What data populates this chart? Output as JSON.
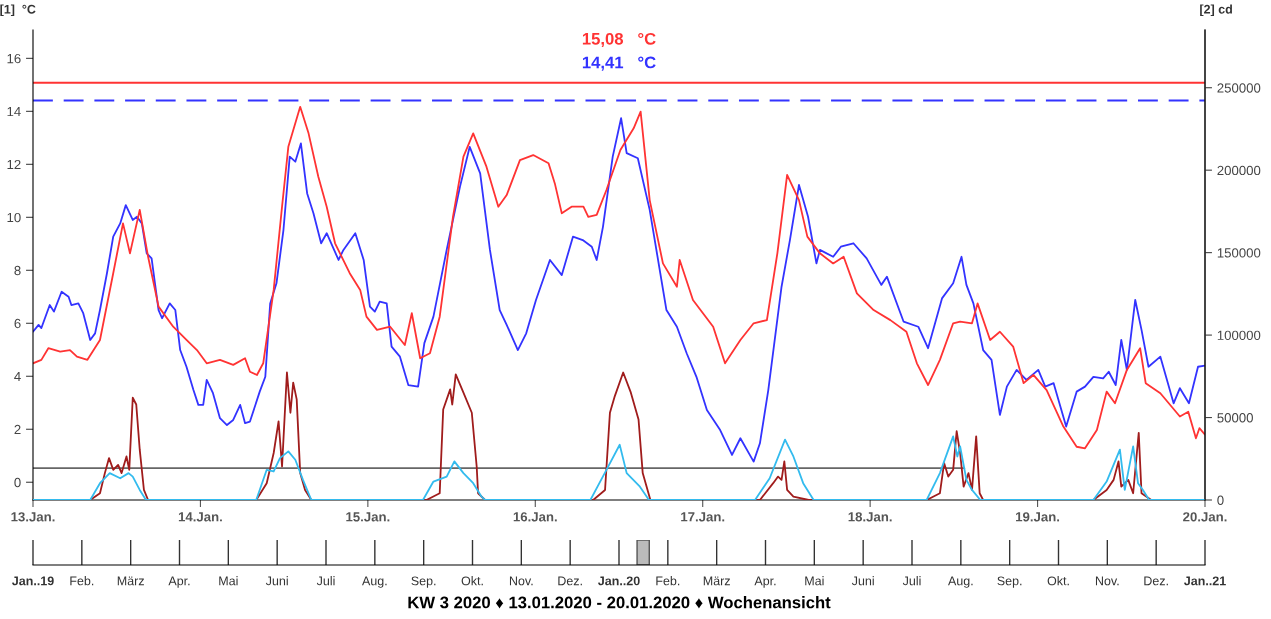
{
  "chart_data": [
    {
      "type": "line",
      "ylabel": "[1]  °C",
      "y2label": "[2] cd",
      "xlim": [
        "2020-01-13",
        "2020-01-20"
      ],
      "xticks": [
        {
          "value": "2020-01-13",
          "label": "13.Jan."
        },
        {
          "value": "2020-01-14",
          "label": "14.Jan."
        },
        {
          "value": "2020-01-15",
          "label": "15.Jan."
        },
        {
          "value": "2020-01-16",
          "label": "16.Jan."
        },
        {
          "value": "2020-01-17",
          "label": "17.Jan."
        },
        {
          "value": "2020-01-18",
          "label": "18.Jan."
        },
        {
          "value": "2020-01-19",
          "label": "19.Jan."
        },
        {
          "value": "2020-01-20",
          "label": "20.Jan."
        }
      ],
      "ylim": [
        -0.67,
        17.07
      ],
      "yticks": [
        0,
        2,
        4,
        6,
        8,
        10,
        12,
        14,
        16
      ],
      "y2lim": [
        0,
        285000
      ],
      "y2ticks": [
        0,
        50000,
        100000,
        150000,
        200000,
        250000
      ],
      "ref_lines": [
        {
          "axis": "y",
          "value": 15.08,
          "label": "15,08   °C",
          "color": "#ff3333",
          "line_style": "solid"
        },
        {
          "axis": "y",
          "value": 14.41,
          "label": "14,41   °C",
          "color": "#3333ff",
          "line_style": "dashed"
        }
      ],
      "series": [
        {
          "color": "#3333ff",
          "x": [
            "2020-01-13T00:00",
            "2020-01-13T00:48",
            "2020-01-13T01:12",
            "2020-01-13T02:24",
            "2020-01-13T03:00",
            "2020-01-13T04:06",
            "2020-01-13T05:06",
            "2020-01-13T05:30",
            "2020-01-13T06:30",
            "2020-01-13T07:12",
            "2020-01-13T08:12",
            "2020-01-13T08:54",
            "2020-01-13T09:36",
            "2020-01-13T10:36",
            "2020-01-13T11:30",
            "2020-01-13T12:30",
            "2020-01-13T13:18",
            "2020-01-13T14:18",
            "2020-01-13T14:54",
            "2020-01-13T15:36",
            "2020-01-13T16:18",
            "2020-01-13T17:00",
            "2020-01-13T18:00",
            "2020-01-13T18:30",
            "2020-01-13T19:36",
            "2020-01-13T20:24",
            "2020-01-13T21:06",
            "2020-01-13T22:00",
            "2020-01-13T23:00",
            "2020-01-13T23:42",
            "2020-01-14T00:24",
            "2020-01-14T00:54",
            "2020-01-14T01:48",
            "2020-01-14T02:48",
            "2020-01-14T03:48",
            "2020-01-14T04:42",
            "2020-01-14T05:42",
            "2020-01-14T06:24",
            "2020-01-14T07:06",
            "2020-01-14T08:30",
            "2020-01-14T09:18",
            "2020-01-14T10:00",
            "2020-01-14T10:54",
            "2020-01-14T11:54",
            "2020-01-14T12:48",
            "2020-01-14T13:36",
            "2020-01-14T14:24",
            "2020-01-14T15:18",
            "2020-01-14T16:12",
            "2020-01-14T17:18",
            "2020-01-14T18:06",
            "2020-01-14T19:48",
            "2020-01-14T20:30",
            "2020-01-14T22:12",
            "2020-01-14T23:24",
            "2020-01-15T00:18",
            "2020-01-15T01:00",
            "2020-01-15T01:42",
            "2020-01-15T02:42",
            "2020-01-15T03:24",
            "2020-01-15T04:36",
            "2020-01-15T05:48",
            "2020-01-15T07:12",
            "2020-01-15T08:06",
            "2020-01-15T09:24",
            "2020-01-15T11:18",
            "2020-01-15T13:12",
            "2020-01-15T14:36",
            "2020-01-15T16:06",
            "2020-01-15T17:30",
            "2020-01-15T18:54",
            "2020-01-15T19:54",
            "2020-01-15T21:30",
            "2020-01-15T22:42",
            "2020-01-16T00:06",
            "2020-01-16T02:06",
            "2020-01-16T03:48",
            "2020-01-16T05:24",
            "2020-01-16T06:48",
            "2020-01-16T08:06",
            "2020-01-16T08:48",
            "2020-01-16T09:42",
            "2020-01-16T11:06",
            "2020-01-16T12:18",
            "2020-01-16T13:06",
            "2020-01-16T14:42",
            "2020-01-16T16:24",
            "2020-01-16T18:48",
            "2020-01-16T20:18",
            "2020-01-16T21:42",
            "2020-01-16T23:06",
            "2020-01-17T00:36",
            "2020-01-17T02:30",
            "2020-01-17T04:12",
            "2020-01-17T05:24",
            "2020-01-17T07:18",
            "2020-01-17T08:12",
            "2020-01-17T09:24",
            "2020-01-17T11:18",
            "2020-01-17T12:30",
            "2020-01-17T13:48",
            "2020-01-17T15:06",
            "2020-01-17T16:18",
            "2020-01-17T16:48",
            "2020-01-17T18:42",
            "2020-01-17T19:48",
            "2020-01-17T21:36",
            "2020-01-17T23:30",
            "2020-01-18T01:36",
            "2020-01-18T02:24",
            "2020-01-18T04:48",
            "2020-01-18T06:54",
            "2020-01-18T08:18",
            "2020-01-18T10:18",
            "2020-01-18T11:54",
            "2020-01-18T13:06",
            "2020-01-18T13:48",
            "2020-01-18T14:48",
            "2020-01-18T16:12",
            "2020-01-18T17:24",
            "2020-01-18T18:36",
            "2020-01-18T19:36",
            "2020-01-18T21:00",
            "2020-01-18T22:24",
            "2020-01-19T00:06",
            "2020-01-19T01:06",
            "2020-01-19T02:18",
            "2020-01-19T04:06",
            "2020-01-19T05:36",
            "2020-01-19T06:48",
            "2020-01-19T08:00",
            "2020-01-19T09:24",
            "2020-01-19T10:12",
            "2020-01-19T11:12",
            "2020-01-19T12:00",
            "2020-01-19T12:48",
            "2020-01-19T14:00",
            "2020-01-19T14:54",
            "2020-01-19T15:54",
            "2020-01-19T17:36",
            "2020-01-19T19:30",
            "2020-01-19T20:24",
            "2020-01-19T21:42",
            "2020-01-19T23:00",
            "2020-01-20T00:00"
          ],
          "values": [
            5.68,
            5.94,
            5.82,
            6.69,
            6.44,
            7.19,
            7.0,
            6.69,
            6.75,
            6.38,
            5.37,
            5.62,
            6.5,
            7.89,
            9.27,
            9.77,
            10.46,
            9.9,
            10.02,
            9.77,
            8.64,
            8.45,
            6.5,
            6.19,
            6.75,
            6.5,
            4.99,
            4.36,
            3.48,
            2.92,
            2.92,
            3.86,
            3.36,
            2.42,
            2.16,
            2.35,
            2.92,
            2.23,
            2.29,
            3.42,
            3.98,
            6.75,
            7.51,
            9.52,
            12.29,
            12.1,
            12.79,
            10.9,
            10.15,
            9.02,
            9.4,
            8.39,
            8.77,
            9.4,
            8.39,
            6.63,
            6.44,
            6.82,
            6.75,
            5.12,
            4.74,
            3.67,
            3.61,
            5.25,
            6.25,
            8.77,
            11.15,
            12.66,
            11.66,
            8.77,
            6.5,
            5.94,
            4.99,
            5.62,
            6.88,
            8.39,
            7.82,
            9.27,
            9.14,
            8.89,
            8.39,
            9.64,
            12.29,
            13.74,
            12.42,
            12.23,
            10.28,
            6.5,
            5.87,
            4.87,
            3.98,
            2.73,
            1.97,
            1.03,
            1.66,
            0.78,
            1.47,
            3.48,
            7.38,
            9.14,
            11.22,
            10.02,
            8.26,
            8.77,
            8.51,
            8.89,
            9.02,
            8.45,
            7.45,
            7.76,
            6.06,
            5.87,
            5.06,
            6.94,
            7.51,
            8.51,
            7.45,
            6.75,
            4.99,
            4.62,
            2.54,
            3.61,
            4.24,
            3.86,
            4.24,
            3.61,
            3.74,
            2.1,
            3.42,
            3.61,
            3.98,
            3.92,
            4.17,
            3.67,
            5.37,
            4.24,
            6.88,
            5.75,
            4.36,
            4.74,
            2.98,
            3.55,
            2.98,
            4.36,
            4.4
          ]
        },
        {
          "color": "#ff3333",
          "x": [
            "2020-01-13T00:00",
            "2020-01-13T01:12",
            "2020-01-13T02:12",
            "2020-01-13T03:54",
            "2020-01-13T05:18",
            "2020-01-13T06:18",
            "2020-01-13T07:48",
            "2020-01-13T09:36",
            "2020-01-13T11:30",
            "2020-01-13T12:54",
            "2020-01-13T13:54",
            "2020-01-13T15:18",
            "2020-01-13T16:30",
            "2020-01-13T18:00",
            "2020-01-13T20:06",
            "2020-01-13T22:00",
            "2020-01-13T23:30",
            "2020-01-14T00:54",
            "2020-01-14T02:48",
            "2020-01-14T04:42",
            "2020-01-14T06:24",
            "2020-01-14T07:06",
            "2020-01-14T08:06",
            "2020-01-14T09:00",
            "2020-01-14T10:30",
            "2020-01-14T11:42",
            "2020-01-14T12:36",
            "2020-01-14T14:18",
            "2020-01-14T15:30",
            "2020-01-14T16:54",
            "2020-01-14T18:06",
            "2020-01-14T19:18",
            "2020-01-14T21:24",
            "2020-01-14T22:54",
            "2020-01-14T23:48",
            "2020-01-15T01:18",
            "2020-01-15T03:12",
            "2020-01-15T05:18",
            "2020-01-15T06:18",
            "2020-01-15T07:30",
            "2020-01-15T08:54",
            "2020-01-15T10:18",
            "2020-01-15T12:12",
            "2020-01-15T13:42",
            "2020-01-15T15:06",
            "2020-01-15T17:00",
            "2020-01-15T18:42",
            "2020-01-15T19:54",
            "2020-01-15T21:48",
            "2020-01-15T23:42",
            "2020-01-16T01:54",
            "2020-01-16T02:48",
            "2020-01-16T03:48",
            "2020-01-16T05:12",
            "2020-01-16T06:54",
            "2020-01-16T07:36",
            "2020-01-16T08:48",
            "2020-01-16T10:12",
            "2020-01-16T12:12",
            "2020-01-16T14:06",
            "2020-01-16T15:06",
            "2020-01-16T16:24",
            "2020-01-16T18:18",
            "2020-01-16T20:18",
            "2020-01-16T20:42",
            "2020-01-16T22:36",
            "2020-01-17T01:30",
            "2020-01-17T03:12",
            "2020-01-17T05:24",
            "2020-01-17T07:18",
            "2020-01-17T09:12",
            "2020-01-17T10:42",
            "2020-01-17T12:06",
            "2020-01-17T13:48",
            "2020-01-17T15:00",
            "2020-01-17T16:48",
            "2020-01-17T18:42",
            "2020-01-17T20:12",
            "2020-01-17T22:06",
            "2020-01-18T00:30",
            "2020-01-18T02:54",
            "2020-01-18T05:12",
            "2020-01-18T06:42",
            "2020-01-18T08:18",
            "2020-01-18T10:00",
            "2020-01-18T11:54",
            "2020-01-18T12:54",
            "2020-01-18T14:36",
            "2020-01-18T15:24",
            "2020-01-18T17:12",
            "2020-01-18T18:36",
            "2020-01-18T20:30",
            "2020-01-18T22:00",
            "2020-01-18T23:24",
            "2020-01-19T01:18",
            "2020-01-19T03:42",
            "2020-01-19T05:36",
            "2020-01-19T06:48",
            "2020-01-19T08:30",
            "2020-01-19T09:54",
            "2020-01-19T11:06",
            "2020-01-19T12:48",
            "2020-01-19T14:42",
            "2020-01-19T15:30",
            "2020-01-19T17:36",
            "2020-01-19T20:24",
            "2020-01-19T21:36",
            "2020-01-19T22:42",
            "2020-01-19T23:12",
            "2020-01-20T00:00"
          ],
          "values": [
            4.49,
            4.62,
            5.06,
            4.93,
            4.99,
            4.74,
            4.62,
            5.37,
            7.89,
            9.77,
            8.64,
            10.28,
            8.51,
            6.63,
            5.87,
            5.37,
            4.99,
            4.49,
            4.62,
            4.43,
            4.68,
            4.17,
            4.05,
            4.49,
            7.26,
            10.4,
            12.66,
            14.17,
            13.17,
            11.53,
            10.4,
            9.02,
            7.89,
            7.26,
            6.25,
            5.75,
            5.87,
            5.18,
            6.38,
            4.68,
            4.87,
            6.25,
            10.02,
            12.29,
            13.17,
            11.91,
            10.4,
            10.84,
            12.16,
            12.35,
            12.04,
            11.28,
            10.15,
            10.4,
            10.4,
            10.02,
            10.09,
            11.03,
            12.54,
            13.36,
            13.99,
            10.65,
            8.26,
            7.38,
            8.39,
            6.88,
            5.87,
            4.49,
            5.37,
            6.0,
            6.12,
            8.64,
            11.6,
            10.65,
            9.27,
            8.64,
            8.26,
            8.51,
            7.13,
            6.5,
            6.12,
            5.68,
            4.49,
            3.67,
            4.62,
            6.0,
            6.06,
            6.0,
            6.75,
            5.37,
            5.68,
            5.12,
            3.74,
            4.05,
            3.48,
            2.1,
            1.34,
            1.28,
            1.97,
            3.42,
            2.98,
            4.24,
            5.06,
            3.74,
            3.36,
            2.48,
            2.66,
            1.66,
            2.04,
            1.8
          ]
        },
        {
          "color": "#a01c1c",
          "axis": "y2",
          "x": [
            "2020-01-13T00:00",
            "2020-01-13T08:12",
            "2020-01-13T09:36",
            "2020-01-13T10:18",
            "2020-01-13T10:54",
            "2020-01-13T11:30",
            "2020-01-13T12:12",
            "2020-01-13T12:42",
            "2020-01-13T13:24",
            "2020-01-13T13:48",
            "2020-01-13T14:18",
            "2020-01-13T14:48",
            "2020-01-13T15:18",
            "2020-01-13T15:54",
            "2020-01-13T16:30",
            "2020-01-14T08:00",
            "2020-01-14T09:30",
            "2020-01-14T10:30",
            "2020-01-14T11:12",
            "2020-01-14T11:42",
            "2020-01-14T12:24",
            "2020-01-14T12:54",
            "2020-01-14T13:18",
            "2020-01-14T13:48",
            "2020-01-14T14:18",
            "2020-01-14T15:00",
            "2020-01-14T15:54",
            "2020-01-15T08:24",
            "2020-01-15T10:18",
            "2020-01-15T10:48",
            "2020-01-15T11:48",
            "2020-01-15T12:06",
            "2020-01-15T12:36",
            "2020-01-15T13:42",
            "2020-01-15T14:54",
            "2020-01-15T15:36",
            "2020-01-15T15:48",
            "2020-01-15T16:48",
            "2020-01-16T08:18",
            "2020-01-16T10:00",
            "2020-01-16T10:42",
            "2020-01-16T11:24",
            "2020-01-16T12:36",
            "2020-01-16T13:42",
            "2020-01-16T14:48",
            "2020-01-16T15:24",
            "2020-01-16T16:30",
            "2020-01-17T08:12",
            "2020-01-17T10:06",
            "2020-01-17T10:48",
            "2020-01-17T11:18",
            "2020-01-17T11:42",
            "2020-01-17T12:06",
            "2020-01-17T13:00",
            "2020-01-17T15:12",
            "2020-01-18T08:06",
            "2020-01-18T10:00",
            "2020-01-18T10:36",
            "2020-01-18T11:12",
            "2020-01-18T11:54",
            "2020-01-18T12:24",
            "2020-01-18T12:54",
            "2020-01-18T13:24",
            "2020-01-18T14:06",
            "2020-01-18T14:36",
            "2020-01-18T15:12",
            "2020-01-18T15:42",
            "2020-01-18T16:12",
            "2020-01-19T08:00",
            "2020-01-19T09:54",
            "2020-01-19T10:54",
            "2020-01-19T11:36",
            "2020-01-19T12:00",
            "2020-01-19T13:00",
            "2020-01-19T13:42",
            "2020-01-19T14:30",
            "2020-01-19T14:54",
            "2020-01-19T16:18",
            "2020-01-20T00:00"
          ],
          "values": [
            0,
            0,
            4100,
            16300,
            25400,
            18300,
            21300,
            16300,
            26400,
            18300,
            62000,
            57900,
            30500,
            6100,
            0,
            0,
            10200,
            28500,
            47700,
            20300,
            77300,
            52900,
            71200,
            61000,
            16300,
            6100,
            0,
            0,
            4100,
            54900,
            67100,
            57900,
            76200,
            65100,
            52900,
            20300,
            4100,
            0,
            0,
            6100,
            52900,
            63000,
            77300,
            65100,
            48800,
            16300,
            0,
            0,
            10200,
            14200,
            12200,
            23400,
            6100,
            2000,
            0,
            0,
            4100,
            22400,
            14200,
            18300,
            41700,
            28500,
            8100,
            16300,
            6100,
            38600,
            4100,
            0,
            0,
            6100,
            12200,
            23400,
            8100,
            12200,
            4100,
            40700,
            4100,
            0,
            0
          ]
        },
        {
          "color": "#33bbee",
          "axis": "y2",
          "x": [
            "2020-01-13T00:00",
            "2020-01-13T08:12",
            "2020-01-13T09:36",
            "2020-01-13T11:00",
            "2020-01-13T12:30",
            "2020-01-13T13:42",
            "2020-01-13T14:18",
            "2020-01-13T15:18",
            "2020-01-13T16:12",
            "2020-01-14T08:00",
            "2020-01-14T09:30",
            "2020-01-14T10:30",
            "2020-01-14T11:24",
            "2020-01-14T12:36",
            "2020-01-14T13:36",
            "2020-01-14T14:42",
            "2020-01-14T15:54",
            "2020-01-15T07:54",
            "2020-01-15T09:24",
            "2020-01-15T11:18",
            "2020-01-15T12:24",
            "2020-01-15T13:42",
            "2020-01-15T15:06",
            "2020-01-15T16:18",
            "2020-01-15T16:48",
            "2020-01-16T07:54",
            "2020-01-16T10:12",
            "2020-01-16T12:06",
            "2020-01-16T13:06",
            "2020-01-16T15:00",
            "2020-01-16T16:18",
            "2020-01-17T07:30",
            "2020-01-17T09:36",
            "2020-01-17T11:48",
            "2020-01-17T13:00",
            "2020-01-17T14:24",
            "2020-01-17T15:54",
            "2020-01-18T08:06",
            "2020-01-18T10:00",
            "2020-01-18T11:54",
            "2020-01-18T12:30",
            "2020-01-18T12:54",
            "2020-01-18T13:48",
            "2020-01-18T14:36",
            "2020-01-18T15:48",
            "2020-01-19T08:00",
            "2020-01-19T09:54",
            "2020-01-19T11:48",
            "2020-01-19T12:30",
            "2020-01-19T13:42",
            "2020-01-19T14:24",
            "2020-01-19T15:06",
            "2020-01-19T16:00",
            "2020-01-20T00:00"
          ],
          "values": [
            0,
            0,
            10200,
            16300,
            13200,
            16300,
            14200,
            6100,
            0,
            0,
            18300,
            17300,
            25400,
            29500,
            24400,
            12200,
            0,
            0,
            11200,
            14200,
            23400,
            16300,
            10200,
            2000,
            0,
            0,
            18300,
            33500,
            16300,
            8100,
            0,
            0,
            13200,
            36600,
            26400,
            10200,
            0,
            0,
            16300,
            38600,
            26400,
            32500,
            12200,
            6100,
            0,
            0,
            11200,
            30500,
            6100,
            32500,
            10200,
            6100,
            0,
            0
          ]
        },
        {
          "color": "#666666",
          "x": [
            "2020-01-13T00:00",
            "2020-01-18T13:30"
          ],
          "values": [
            0.53,
            0.53
          ]
        }
      ]
    },
    {
      "type": "other",
      "xlabel": "KW 3 2020 ♦ 13.01.2020 - 20.01.2020 ♦ Wochenansicht",
      "categories": [
        "Jan..19",
        "Feb.",
        "März",
        "Apr.",
        "Mai",
        "Juni",
        "Juli",
        "Aug.",
        "Sep.",
        "Okt.",
        "Nov.",
        "Dez.",
        "Jan..20",
        "Feb.",
        "März",
        "Apr.",
        "Mai",
        "Juni",
        "Juli",
        "Aug.",
        "Sep.",
        "Okt.",
        "Nov.",
        "Dez.",
        "Jan..21"
      ]
    }
  ]
}
